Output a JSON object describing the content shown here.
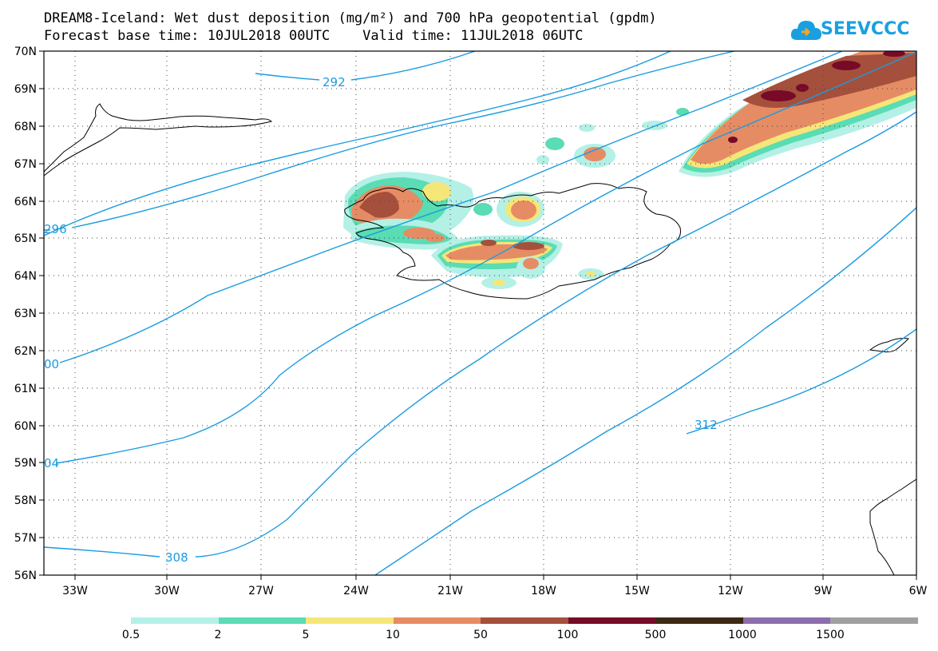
{
  "header": {
    "title_line1": "DREAM8-Iceland: Wet dust deposition (mg/m²) and 700 hPa geopotential (gpdm)",
    "title_line2": "Forecast base time: 10JUL2018 00UTC    Valid time: 11JUL2018 06UTC",
    "logo_text": "SEEVCCC"
  },
  "map": {
    "lon_range": [
      -34.4,
      -6
    ],
    "lat_range": [
      56,
      70
    ],
    "lon_ticks": [
      "33W",
      "30W",
      "27W",
      "24W",
      "21W",
      "18W",
      "15W",
      "12W",
      "9W",
      "6W"
    ],
    "lat_ticks": [
      "70N",
      "69N",
      "68N",
      "67N",
      "66N",
      "65N",
      "64N",
      "63N",
      "62N",
      "61N",
      "60N",
      "59N",
      "58N",
      "57N",
      "56N"
    ],
    "contour_labels": [
      "292",
      "296",
      "00",
      "04",
      "308",
      "312"
    ],
    "contour_color": "#1a9be0"
  },
  "legend": {
    "colors": [
      "#b4f0e6",
      "#5adcb4",
      "#f5e678",
      "#e68c64",
      "#a5503c",
      "#780a28",
      "#3c2814",
      "#8c6eaa",
      "#a0a0a0"
    ],
    "labels": [
      "0.5",
      "2",
      "5",
      "10",
      "50",
      "100",
      "500",
      "1000",
      "1500"
    ]
  }
}
